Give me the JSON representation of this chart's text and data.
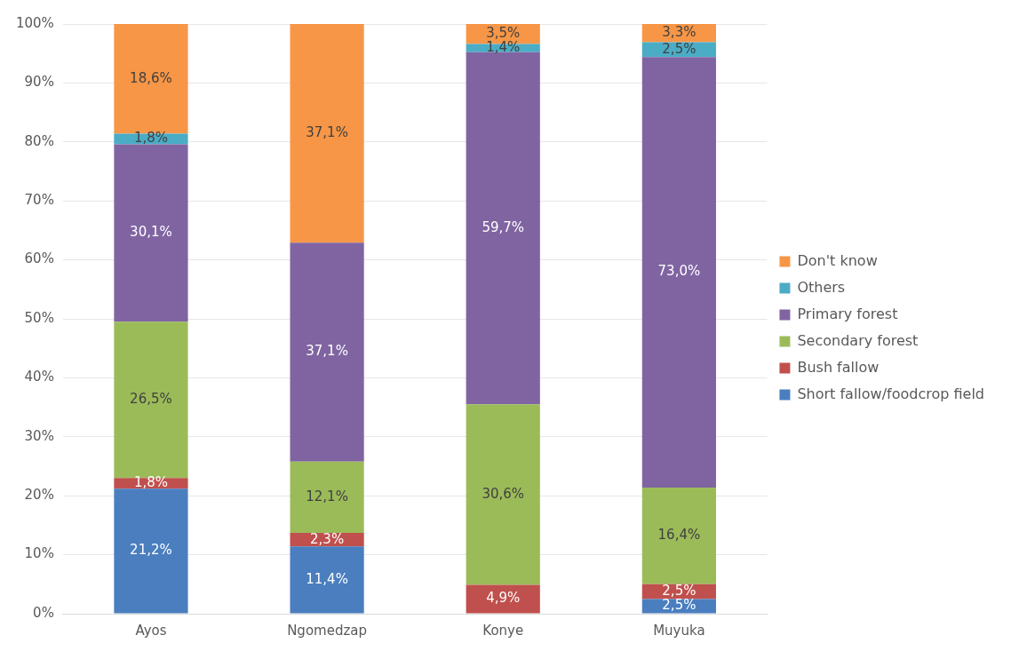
{
  "chart_data": {
    "type": "bar",
    "stacked": true,
    "categories": [
      "Ayos",
      "Ngomedzap",
      "Konye",
      "Muyuka"
    ],
    "ylim": [
      0,
      100
    ],
    "yticks": [
      {
        "value": 0,
        "label": "0%"
      },
      {
        "value": 10,
        "label": "10%"
      },
      {
        "value": 20,
        "label": "20%"
      },
      {
        "value": 30,
        "label": "30%"
      },
      {
        "value": 40,
        "label": "40%"
      },
      {
        "value": 50,
        "label": "50%"
      },
      {
        "value": 60,
        "label": "60%"
      },
      {
        "value": 70,
        "label": "70%"
      },
      {
        "value": 80,
        "label": "80%"
      },
      {
        "value": 90,
        "label": "90%"
      },
      {
        "value": 100,
        "label": "100%"
      }
    ],
    "grid": "y",
    "legend": "right",
    "series": [
      {
        "name": "Short fallow/foodcrop field",
        "color": "#4a7ebf",
        "values": [
          21.2,
          11.4,
          null,
          2.5
        ],
        "value_labels": [
          "21,2%",
          "11,4%",
          null,
          "2,5%"
        ]
      },
      {
        "name": "Bush fallow",
        "color": "#c0504d",
        "values": [
          1.8,
          2.3,
          4.9,
          2.5
        ],
        "value_labels": [
          "1,8%",
          "2,3%",
          "4,9%",
          "2,5%"
        ]
      },
      {
        "name": "Secondary forest",
        "color": "#9bbb59",
        "values": [
          26.5,
          12.1,
          30.6,
          16.4
        ],
        "value_labels": [
          "26,5%",
          "12,1%",
          "30,6%",
          "16,4%"
        ]
      },
      {
        "name": "Primary forest",
        "color": "#8064a2",
        "values": [
          30.1,
          37.1,
          59.7,
          73.0
        ],
        "value_labels": [
          "30,1%",
          "37,1%",
          "59,7%",
          "73,0%"
        ]
      },
      {
        "name": "Others",
        "color": "#4bacc6",
        "values": [
          1.8,
          null,
          1.4,
          2.5
        ],
        "value_labels": [
          "1,8%",
          null,
          "1,4%",
          "2,5%"
        ]
      },
      {
        "name": "Don't know",
        "color": "#f79646",
        "values": [
          18.6,
          37.1,
          3.5,
          3.3
        ],
        "value_labels": [
          "18,6%",
          "37,1%",
          "3,5%",
          "3,3%"
        ]
      }
    ]
  }
}
